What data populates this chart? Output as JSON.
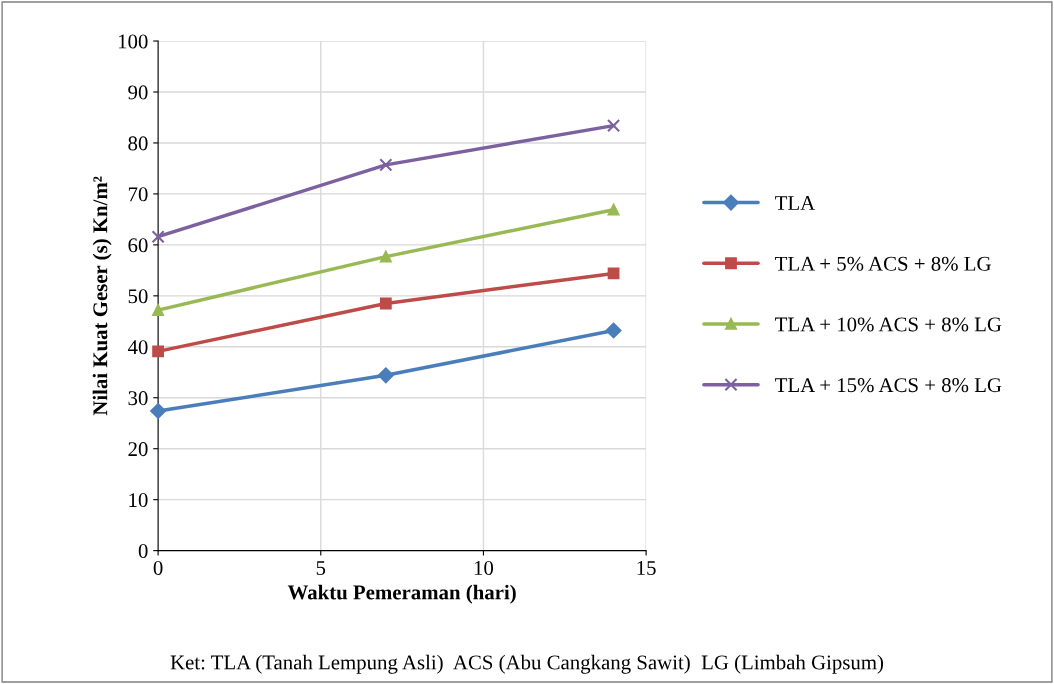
{
  "chart_data": {
    "type": "line",
    "xlabel": "Waktu Pemeraman (hari)",
    "ylabel": "Nilai Kuat Geser (s) Kn/m²",
    "x": [
      0,
      7,
      14
    ],
    "series": [
      {
        "name": "TLA",
        "color": "#4a7ebb",
        "marker": "diamond",
        "values": [
          27.4,
          34.4,
          43.2
        ]
      },
      {
        "name": "TLA + 5% ACS + 8% LG",
        "color": "#be4b48",
        "marker": "square",
        "values": [
          39.1,
          48.5,
          54.4
        ]
      },
      {
        "name": "TLA + 10% ACS + 8% LG",
        "color": "#98b954",
        "marker": "triangle",
        "values": [
          47.2,
          57.7,
          66.9
        ]
      },
      {
        "name": "TLA + 15% ACS + 8% LG",
        "color": "#7d60a0",
        "marker": "cross",
        "values": [
          61.6,
          75.7,
          83.4
        ]
      }
    ],
    "xlim": [
      0,
      15
    ],
    "xticks": [
      0,
      5,
      10,
      15
    ],
    "ylim": [
      0,
      100
    ],
    "yticks": [
      0,
      10,
      20,
      30,
      40,
      50,
      60,
      70,
      80,
      90,
      100
    ],
    "grid": true,
    "legend": "right",
    "line_style": "solid",
    "annotations": [
      "Ket: TLA (Tanah Lempung Asli)  ACS (Abu Cangkang Sawit)  LG (Limbah Gipsum)"
    ]
  }
}
